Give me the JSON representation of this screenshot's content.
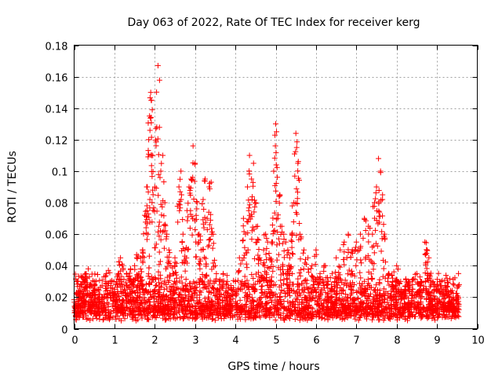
{
  "chart_data": {
    "type": "scatter",
    "title": "Day 063 of 2022, Rate Of TEC Index for receiver kerg",
    "xlabel": "GPS time / hours",
    "ylabel": "ROTI / TECUs",
    "xlim": [
      0,
      10
    ],
    "ylim": [
      0,
      0.18
    ],
    "x_ticks": [
      "0",
      "1",
      "2",
      "3",
      "4",
      "5",
      "6",
      "7",
      "8",
      "9",
      "10"
    ],
    "y_ticks": [
      "0",
      "0.02",
      "0.04",
      "0.06",
      "0.08",
      "0.1",
      "0.12",
      "0.14",
      "0.16",
      "0.18"
    ],
    "x_tick_values": [
      0,
      1,
      2,
      3,
      4,
      5,
      6,
      7,
      8,
      9,
      10
    ],
    "y_tick_values": [
      0,
      0.02,
      0.04,
      0.06,
      0.08,
      0.1,
      0.12,
      0.14,
      0.16,
      0.18
    ],
    "grid": true,
    "marker": "plus",
    "marker_color": "#ff0000",
    "data_range_x": [
      0,
      9.55
    ],
    "baseline_band": [
      0.005,
      0.03
    ],
    "series": [
      {
        "values": [
          [
            0.05,
            0.015
          ],
          [
            0.1,
            0.03
          ],
          [
            0.15,
            0.02
          ],
          [
            0.2,
            0.018
          ],
          [
            0.25,
            0.025
          ],
          [
            0.3,
            0.035
          ],
          [
            0.35,
            0.038
          ],
          [
            0.4,
            0.028
          ],
          [
            0.5,
            0.03
          ],
          [
            0.6,
            0.025
          ],
          [
            0.7,
            0.02
          ],
          [
            0.8,
            0.035
          ],
          [
            0.85,
            0.037
          ],
          [
            0.9,
            0.03
          ],
          [
            1.0,
            0.025
          ],
          [
            1.05,
            0.03
          ],
          [
            1.1,
            0.035
          ],
          [
            1.15,
            0.045
          ],
          [
            1.2,
            0.04
          ],
          [
            1.3,
            0.035
          ],
          [
            1.4,
            0.038
          ],
          [
            1.5,
            0.04
          ],
          [
            1.55,
            0.047
          ],
          [
            1.6,
            0.035
          ],
          [
            1.65,
            0.045
          ],
          [
            1.7,
            0.05
          ],
          [
            1.75,
            0.072
          ],
          [
            1.8,
            0.09
          ],
          [
            1.83,
            0.06
          ],
          [
            1.85,
            0.12
          ],
          [
            1.87,
            0.135
          ],
          [
            1.9,
            0.15
          ],
          [
            1.92,
            0.145
          ],
          [
            1.95,
            0.11
          ],
          [
            2.0,
            0.09
          ],
          [
            2.05,
            0.128
          ],
          [
            2.08,
            0.167
          ],
          [
            2.1,
            0.065
          ],
          [
            2.15,
            0.1
          ],
          [
            2.2,
            0.11
          ],
          [
            2.25,
            0.08
          ],
          [
            2.3,
            0.06
          ],
          [
            2.35,
            0.05
          ],
          [
            2.4,
            0.04
          ],
          [
            2.45,
            0.035
          ],
          [
            2.5,
            0.045
          ],
          [
            2.6,
            0.09
          ],
          [
            2.65,
            0.1
          ],
          [
            2.7,
            0.06
          ],
          [
            2.75,
            0.05
          ],
          [
            2.8,
            0.075
          ],
          [
            2.85,
            0.09
          ],
          [
            2.9,
            0.095
          ],
          [
            2.95,
            0.116
          ],
          [
            3.0,
            0.105
          ],
          [
            3.05,
            0.08
          ],
          [
            3.1,
            0.06
          ],
          [
            3.15,
            0.05
          ],
          [
            3.2,
            0.082
          ],
          [
            3.25,
            0.095
          ],
          [
            3.3,
            0.07
          ],
          [
            3.35,
            0.09
          ],
          [
            3.4,
            0.093
          ],
          [
            3.45,
            0.06
          ],
          [
            3.5,
            0.04
          ],
          [
            3.6,
            0.03
          ],
          [
            3.7,
            0.035
          ],
          [
            3.8,
            0.03
          ],
          [
            3.9,
            0.025
          ],
          [
            4.0,
            0.03
          ],
          [
            4.1,
            0.045
          ],
          [
            4.2,
            0.07
          ],
          [
            4.25,
            0.06
          ],
          [
            4.3,
            0.09
          ],
          [
            4.35,
            0.11
          ],
          [
            4.4,
            0.095
          ],
          [
            4.45,
            0.105
          ],
          [
            4.5,
            0.08
          ],
          [
            4.55,
            0.065
          ],
          [
            4.6,
            0.045
          ],
          [
            4.7,
            0.05
          ],
          [
            4.75,
            0.06
          ],
          [
            4.8,
            0.055
          ],
          [
            4.85,
            0.045
          ],
          [
            4.9,
            0.055
          ],
          [
            4.95,
            0.1
          ],
          [
            5.0,
            0.13
          ],
          [
            5.02,
            0.125
          ],
          [
            5.05,
            0.07
          ],
          [
            5.1,
            0.085
          ],
          [
            5.15,
            0.065
          ],
          [
            5.2,
            0.06
          ],
          [
            5.25,
            0.055
          ],
          [
            5.3,
            0.05
          ],
          [
            5.35,
            0.045
          ],
          [
            5.4,
            0.06
          ],
          [
            5.45,
            0.08
          ],
          [
            5.5,
            0.124
          ],
          [
            5.52,
            0.115
          ],
          [
            5.55,
            0.105
          ],
          [
            5.6,
            0.06
          ],
          [
            5.7,
            0.05
          ],
          [
            5.8,
            0.045
          ],
          [
            5.9,
            0.04
          ],
          [
            6.0,
            0.05
          ],
          [
            6.1,
            0.035
          ],
          [
            6.2,
            0.04
          ],
          [
            6.3,
            0.03
          ],
          [
            6.4,
            0.035
          ],
          [
            6.5,
            0.045
          ],
          [
            6.6,
            0.05
          ],
          [
            6.7,
            0.055
          ],
          [
            6.8,
            0.06
          ],
          [
            6.9,
            0.05
          ],
          [
            7.0,
            0.055
          ],
          [
            7.1,
            0.06
          ],
          [
            7.2,
            0.07
          ],
          [
            7.3,
            0.065
          ],
          [
            7.4,
            0.06
          ],
          [
            7.45,
            0.08
          ],
          [
            7.5,
            0.09
          ],
          [
            7.55,
            0.108
          ],
          [
            7.6,
            0.1
          ],
          [
            7.65,
            0.085
          ],
          [
            7.7,
            0.06
          ],
          [
            7.8,
            0.035
          ],
          [
            7.9,
            0.03
          ],
          [
            8.0,
            0.04
          ],
          [
            8.1,
            0.03
          ],
          [
            8.2,
            0.025
          ],
          [
            8.3,
            0.03
          ],
          [
            8.4,
            0.025
          ],
          [
            8.5,
            0.035
          ],
          [
            8.6,
            0.03
          ],
          [
            8.7,
            0.055
          ],
          [
            8.75,
            0.05
          ],
          [
            8.8,
            0.045
          ],
          [
            8.9,
            0.03
          ],
          [
            9.0,
            0.028
          ],
          [
            9.1,
            0.03
          ],
          [
            9.2,
            0.025
          ],
          [
            9.3,
            0.022
          ],
          [
            9.4,
            0.02
          ],
          [
            9.5,
            0.02
          ]
        ]
      }
    ]
  }
}
